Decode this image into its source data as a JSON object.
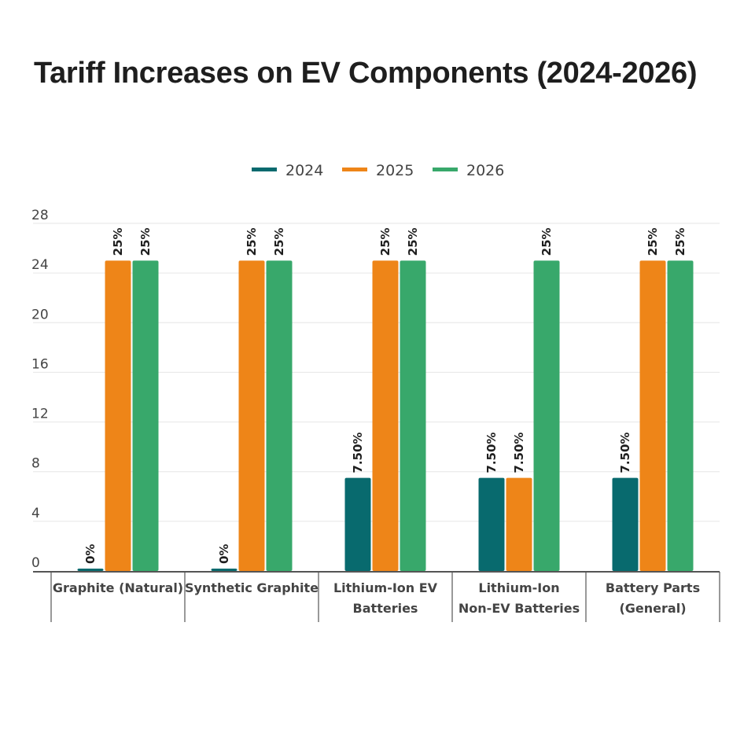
{
  "chart_data": {
    "type": "bar",
    "title": "Tariff Increases on EV Components (2024-2026)",
    "xlabel": "",
    "ylabel": "",
    "ylim": [
      0,
      28
    ],
    "yticks": [
      0,
      4,
      8,
      12,
      16,
      20,
      24,
      28
    ],
    "grid": true,
    "legend_position": "top-center",
    "categories": [
      [
        "Graphite (Natural)"
      ],
      [
        "Synthetic Graphite"
      ],
      [
        "Lithium-Ion EV",
        "Batteries"
      ],
      [
        "Lithium-Ion",
        "Non-EV Batteries"
      ],
      [
        "Battery Parts",
        "(General)"
      ]
    ],
    "series": [
      {
        "name": "2024",
        "color": "#086a6e",
        "values": [
          0,
          0,
          7.5,
          7.5,
          7.5
        ],
        "labels": [
          "0%",
          "0%",
          "7.50%",
          "7.50%",
          "7.50%"
        ]
      },
      {
        "name": "2025",
        "color": "#ee8518",
        "values": [
          25,
          25,
          25,
          7.5,
          25
        ],
        "labels": [
          "25%",
          "25%",
          "25%",
          "7.50%",
          "25%"
        ]
      },
      {
        "name": "2026",
        "color": "#38a86b",
        "values": [
          25,
          25,
          25,
          25,
          25
        ],
        "labels": [
          "25%",
          "25%",
          "25%",
          "25%",
          "25%"
        ]
      }
    ]
  }
}
